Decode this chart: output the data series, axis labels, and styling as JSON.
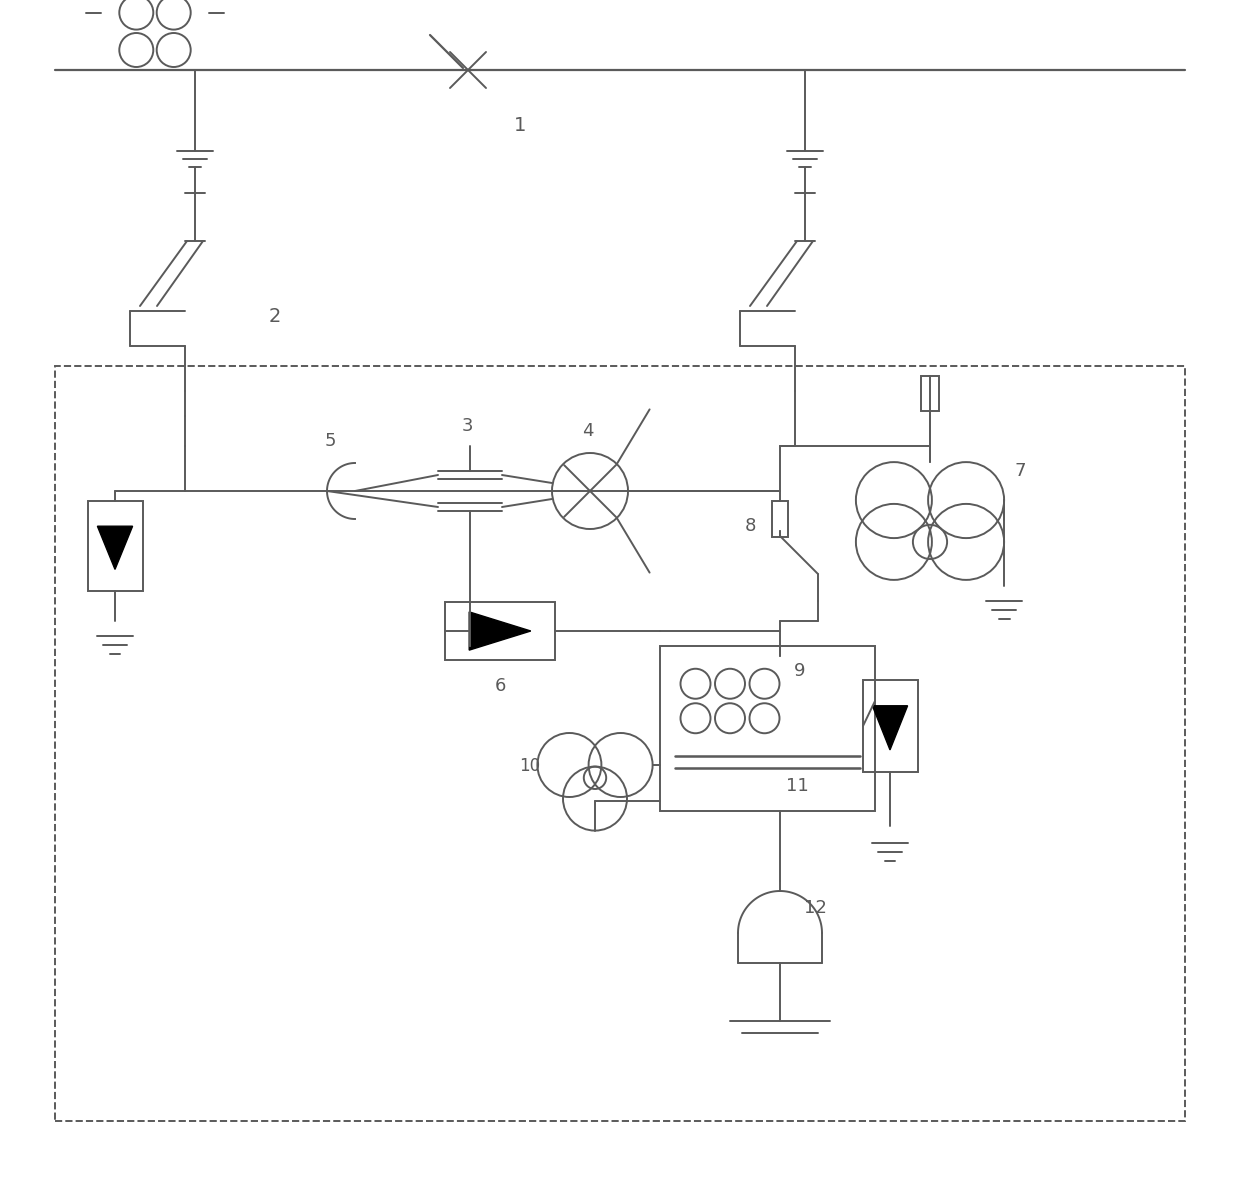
{
  "bg": "#ffffff",
  "lc": "#5a5a5a",
  "lw": 1.4,
  "fw": 12.4,
  "fh": 12.01,
  "dpi": 100
}
